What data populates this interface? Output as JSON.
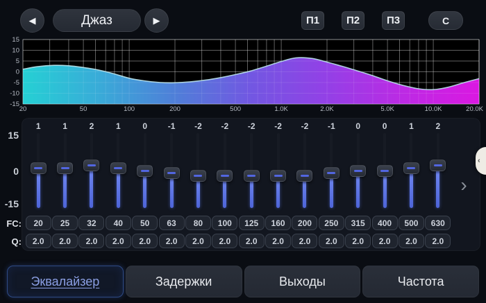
{
  "header": {
    "preset_name": "Джаз",
    "prev_icon": "◀",
    "next_icon": "▶",
    "memory_buttons": [
      "П1",
      "П2",
      "П3"
    ],
    "reset_button": "C"
  },
  "chart_data": {
    "type": "area",
    "title": "EQ frequency response",
    "x_scale": "log",
    "xlim_hz": [
      20,
      20000
    ],
    "ylim_db": [
      -15,
      15
    ],
    "y_ticks": [
      15,
      10,
      5,
      0,
      -5,
      -10,
      -15
    ],
    "x_ticks": [
      {
        "hz": 20,
        "label": "20"
      },
      {
        "hz": 50,
        "label": "50"
      },
      {
        "hz": 100,
        "label": "100"
      },
      {
        "hz": 200,
        "label": "200"
      },
      {
        "hz": 500,
        "label": "500"
      },
      {
        "hz": 1000,
        "label": "1.0K"
      },
      {
        "hz": 2000,
        "label": "2.0K"
      },
      {
        "hz": 5000,
        "label": "5.0K"
      },
      {
        "hz": 10000,
        "label": "10.0K"
      },
      {
        "hz": 20000,
        "label": "20.0K"
      }
    ],
    "grid": true,
    "curve": {
      "freq_hz": [
        20,
        25,
        32,
        40,
        50,
        63,
        80,
        100,
        125,
        160,
        200,
        250,
        315,
        400,
        500,
        630,
        800,
        1000,
        1250,
        1600,
        2000,
        2500,
        3150,
        4000,
        5000,
        6300,
        8000,
        10000,
        12500,
        16000,
        20000
      ],
      "gain_db": [
        1.2,
        2.4,
        3.0,
        2.8,
        2.0,
        0.8,
        -1.0,
        -3.0,
        -4.2,
        -5.0,
        -5.1,
        -4.7,
        -3.9,
        -2.7,
        -1.3,
        0.4,
        2.6,
        4.8,
        6.5,
        6.2,
        4.5,
        2.6,
        0.5,
        -1.8,
        -4.2,
        -6.3,
        -7.9,
        -8.3,
        -7.2,
        -5.0,
        -3.2
      ]
    },
    "gradient_colors": [
      "#25d0d4",
      "#39abd8",
      "#4f7fd8",
      "#7257e2",
      "#9340e6",
      "#bc2ae4",
      "#da18e2"
    ],
    "curve_edge_color": "#bfeaf2"
  },
  "equalizer": {
    "axis_labels": [
      "15",
      "0",
      "-15"
    ],
    "fc_row_label": "FC:",
    "q_row_label": "Q:",
    "gain_range": [
      -15,
      15
    ],
    "more_bands_chevron": "›",
    "bands": [
      {
        "gain": 1,
        "fc": "20",
        "q": "2.0"
      },
      {
        "gain": 1,
        "fc": "25",
        "q": "2.0"
      },
      {
        "gain": 2,
        "fc": "32",
        "q": "2.0"
      },
      {
        "gain": 1,
        "fc": "40",
        "q": "2.0"
      },
      {
        "gain": 0,
        "fc": "50",
        "q": "2.0"
      },
      {
        "gain": -1,
        "fc": "63",
        "q": "2.0"
      },
      {
        "gain": -2,
        "fc": "80",
        "q": "2.0"
      },
      {
        "gain": -2,
        "fc": "100",
        "q": "2.0"
      },
      {
        "gain": -2,
        "fc": "125",
        "q": "2.0"
      },
      {
        "gain": -2,
        "fc": "160",
        "q": "2.0"
      },
      {
        "gain": -2,
        "fc": "200",
        "q": "2.0"
      },
      {
        "gain": -1,
        "fc": "250",
        "q": "2.0"
      },
      {
        "gain": 0,
        "fc": "315",
        "q": "2.0"
      },
      {
        "gain": 0,
        "fc": "400",
        "q": "2.0"
      },
      {
        "gain": 1,
        "fc": "500",
        "q": "2.0"
      },
      {
        "gain": 2,
        "fc": "630",
        "q": "2.0"
      }
    ]
  },
  "edge_handle_chevron": "‹",
  "tabs": [
    {
      "name": "equalizer",
      "label": "Эквалайзер",
      "selected": true
    },
    {
      "name": "delays",
      "label": "Задержки",
      "selected": false
    },
    {
      "name": "outputs",
      "label": "Выходы",
      "selected": false
    },
    {
      "name": "frequency",
      "label": "Частота",
      "selected": false
    }
  ],
  "colors": {
    "accent_blue": "#5873e8",
    "selected_tab_text": "#8b9fe4",
    "background": "#0a0d13"
  }
}
